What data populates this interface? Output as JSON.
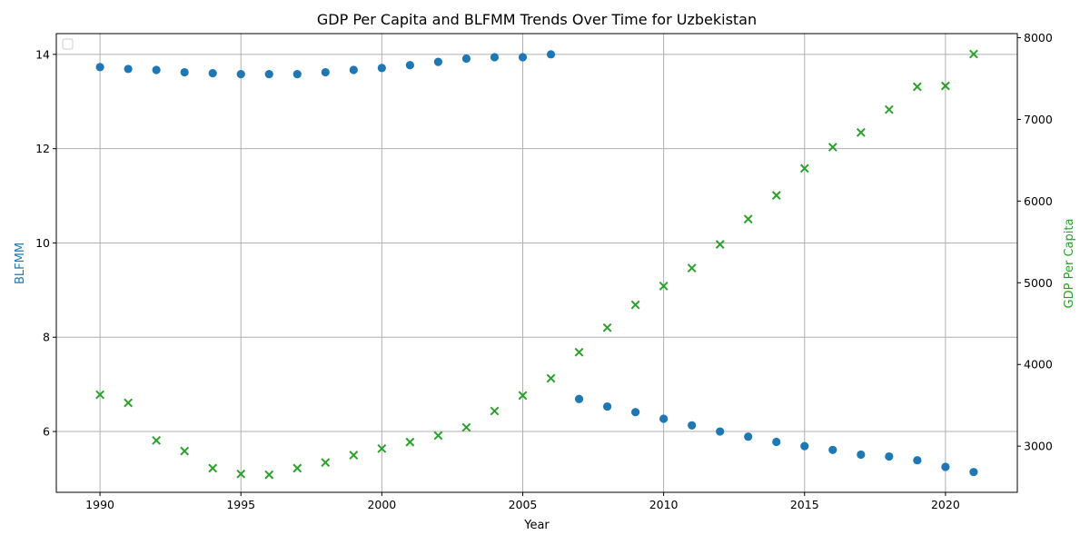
{
  "chart_data": {
    "type": "scatter",
    "title": "GDP Per Capita and BLFMM Trends Over Time for Uzbekistan",
    "xlabel": "Year",
    "ylabel_left": "BLFMM",
    "ylabel_right": "GDP Per Capita",
    "xlim": [
      1988.45,
      2022.55
    ],
    "xticks": [
      1990,
      1995,
      2000,
      2005,
      2010,
      2015,
      2020
    ],
    "ylim_left": [
      4.71,
      14.44
    ],
    "yticks_left": [
      6,
      8,
      10,
      12,
      14
    ],
    "ylim_right": [
      2435,
      8050
    ],
    "yticks_right": [
      3000,
      4000,
      5000,
      6000,
      7000,
      8000
    ],
    "grid": true,
    "legend": "top-left (empty)",
    "series": [
      {
        "axis": "left",
        "marker": "circle",
        "color": "#1f77b4",
        "x": [
          1990,
          1991,
          1992,
          1993,
          1994,
          1995,
          1996,
          1997,
          1998,
          1999,
          2000,
          2001,
          2002,
          2003,
          2004,
          2005,
          2006,
          2007,
          2008,
          2009,
          2010,
          2011,
          2012,
          2013,
          2014,
          2015,
          2016,
          2017,
          2018,
          2019,
          2020,
          2021
        ],
        "y": [
          13.73,
          13.69,
          13.67,
          13.62,
          13.6,
          13.58,
          13.58,
          13.58,
          13.62,
          13.67,
          13.71,
          13.77,
          13.84,
          13.91,
          13.94,
          13.94,
          14.0,
          6.69,
          6.53,
          6.41,
          6.27,
          6.13,
          6.0,
          5.89,
          5.78,
          5.69,
          5.61,
          5.51,
          5.47,
          5.39,
          5.25,
          5.14
        ]
      },
      {
        "axis": "right",
        "marker": "x",
        "color": "#2ca02c",
        "x": [
          1990,
          1991,
          1992,
          1993,
          1994,
          1995,
          1996,
          1997,
          1998,
          1999,
          2000,
          2001,
          2002,
          2003,
          2004,
          2005,
          2006,
          2007,
          2008,
          2009,
          2010,
          2011,
          2012,
          2013,
          2014,
          2015,
          2016,
          2017,
          2018,
          2019,
          2020,
          2021
        ],
        "y": [
          3630,
          3530,
          3070,
          2940,
          2730,
          2660,
          2650,
          2730,
          2800,
          2890,
          2970,
          3050,
          3130,
          3230,
          3430,
          3620,
          3830,
          4150,
          4450,
          4730,
          4960,
          5180,
          5470,
          5780,
          6070,
          6400,
          6660,
          6840,
          7120,
          7400,
          7410,
          7800
        ]
      }
    ],
    "colors": {
      "left_axis_label": "#1f77b4",
      "right_axis_label": "#2ca02c",
      "grid": "#b0b0b0"
    }
  }
}
